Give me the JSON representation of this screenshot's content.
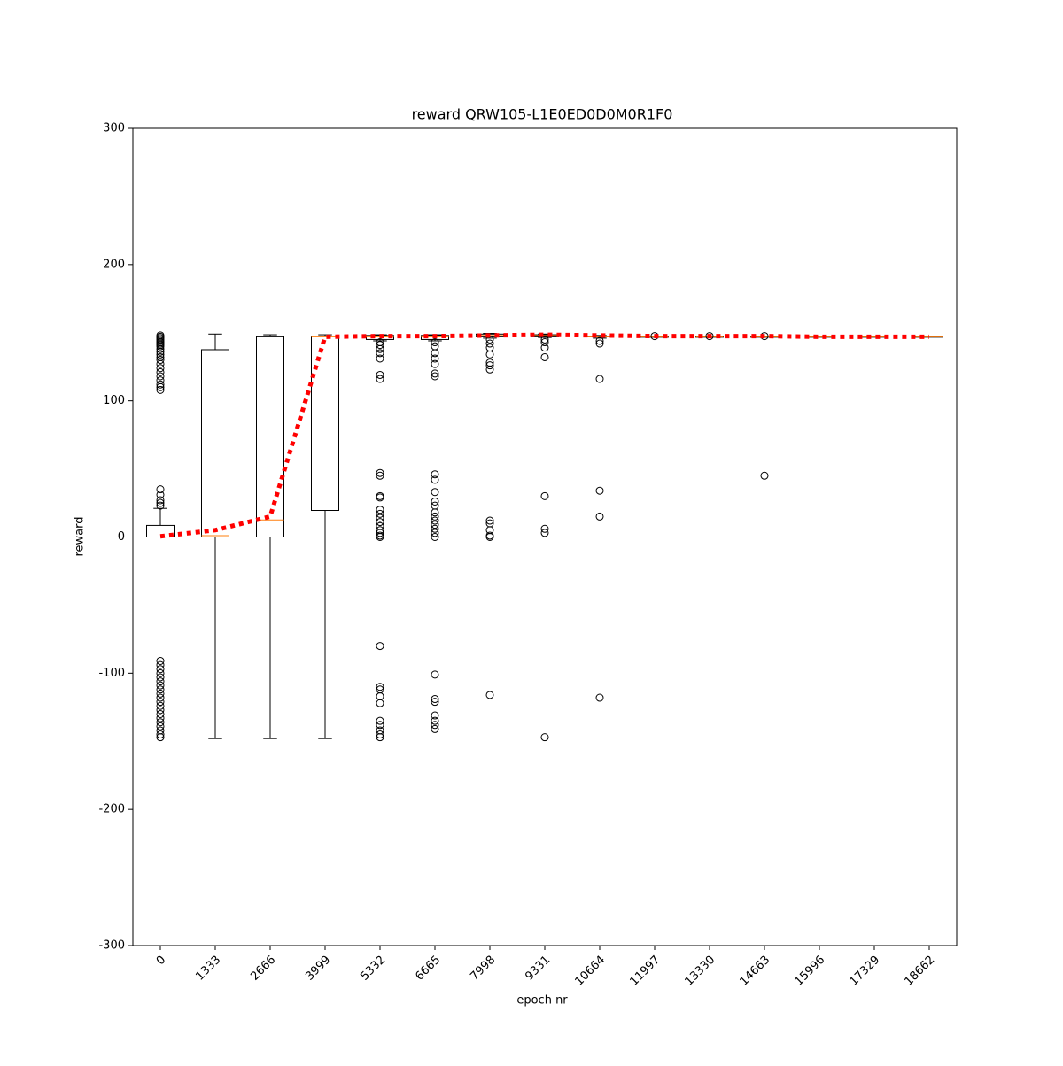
{
  "chart_data": {
    "type": "box",
    "title": "reward QRW105-L1E0ED0D0M0R1F0",
    "xlabel": "epoch nr",
    "ylabel": "reward",
    "categories": [
      "0",
      "1333",
      "2666",
      "3999",
      "5332",
      "6665",
      "7998",
      "9331",
      "10664",
      "11997",
      "13330",
      "14663",
      "15996",
      "17329",
      "18662"
    ],
    "ylim": [
      -300,
      300
    ],
    "yticks": [
      -300,
      -200,
      -100,
      0,
      100,
      200,
      300
    ],
    "box_color": "#000000",
    "median_color": "#ff7f0e",
    "boxes": [
      {
        "whislo": 0,
        "q1": 0,
        "med": 0,
        "q3": 8.5,
        "whishi": 21,
        "fliers": [
          148,
          147,
          146,
          145,
          144,
          143,
          142,
          141,
          140,
          138,
          136,
          134,
          132,
          130,
          127,
          124,
          121,
          118,
          115,
          112,
          110,
          108,
          35,
          31,
          27,
          25,
          23,
          -91,
          -94,
          -97,
          -100,
          -103,
          -106,
          -109,
          -112,
          -115,
          -118,
          -121,
          -124,
          -127,
          -130,
          -133,
          -136,
          -139,
          -142,
          -145,
          -147
        ]
      },
      {
        "whislo": -148,
        "q1": 0,
        "med": 1,
        "q3": 137.5,
        "whishi": 149,
        "fliers": []
      },
      {
        "whislo": -148,
        "q1": 0,
        "med": 12.5,
        "q3": 147,
        "whishi": 148.5,
        "fliers": []
      },
      {
        "whislo": -148,
        "q1": 19.5,
        "med": 147,
        "q3": 147.5,
        "whishi": 148.5,
        "fliers": []
      },
      {
        "whislo": 144,
        "q1": 145,
        "med": 147,
        "q3": 148,
        "whishi": 148.5,
        "fliers": [
          143,
          141,
          138,
          135,
          131,
          119,
          116,
          47,
          45,
          30,
          29,
          20,
          17,
          14,
          11,
          8,
          5,
          3,
          1,
          0,
          -80,
          -110,
          -112,
          -117,
          -122,
          -135,
          -138,
          -142,
          -145,
          -147
        ]
      },
      {
        "whislo": 144,
        "q1": 145,
        "med": 147,
        "q3": 148,
        "whishi": 148.5,
        "fliers": [
          143,
          140,
          135,
          131,
          127,
          120,
          118,
          46,
          42,
          33,
          26,
          23,
          18,
          15,
          12,
          9,
          6,
          3,
          0,
          -101,
          -119,
          -121,
          -131,
          -135,
          -138,
          -141
        ]
      },
      {
        "whislo": 146,
        "q1": 147,
        "med": 148,
        "q3": 149,
        "whishi": 149.5,
        "fliers": [
          145,
          142,
          139,
          134,
          128,
          126,
          123,
          12,
          10,
          5,
          1,
          0,
          -116
        ]
      },
      {
        "whislo": 146.5,
        "q1": 147,
        "med": 148,
        "q3": 148.5,
        "whishi": 149,
        "fliers": [
          145,
          143,
          139,
          132,
          30,
          6,
          3,
          -147
        ]
      },
      {
        "whislo": 146,
        "q1": 147,
        "med": 147,
        "q3": 147.5,
        "whishi": 148,
        "fliers": [
          144,
          142,
          116,
          34,
          15,
          -118
        ]
      },
      {
        "whislo": 147,
        "q1": 147,
        "med": 147,
        "q3": 147,
        "whishi": 147,
        "fliers": [
          147.5
        ]
      },
      {
        "whislo": 147,
        "q1": 147,
        "med": 147,
        "q3": 147,
        "whishi": 147,
        "fliers": [
          147.5
        ]
      },
      {
        "whislo": 147,
        "q1": 147,
        "med": 147,
        "q3": 147,
        "whishi": 147,
        "fliers": [
          147.5,
          45
        ]
      },
      {
        "whislo": 147,
        "q1": 147,
        "med": 147,
        "q3": 147,
        "whishi": 147,
        "fliers": []
      },
      {
        "whislo": 147,
        "q1": 147,
        "med": 147,
        "q3": 147,
        "whishi": 147,
        "fliers": []
      },
      {
        "whislo": 147,
        "q1": 147,
        "med": 147,
        "q3": 147,
        "whishi": 147,
        "fliers": []
      }
    ],
    "series": [
      {
        "color": "#ff0000",
        "values": [
          0.5,
          5,
          15,
          147,
          147.5,
          147.5,
          148,
          148.5,
          148,
          147.5,
          147.5,
          147.5,
          147,
          147,
          147
        ]
      }
    ]
  }
}
